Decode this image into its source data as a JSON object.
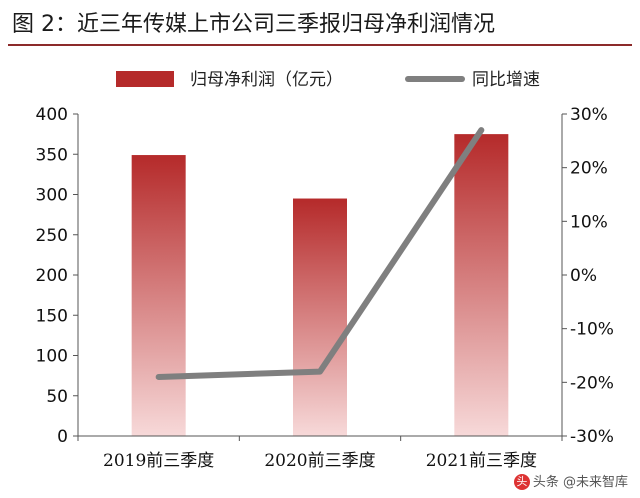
{
  "figure_title": "图 2：近三年传媒上市公司三季报归母净利润情况",
  "watermark": "头条 @未来智库",
  "chart_data": {
    "type": "bar+line",
    "title": "近三年传媒上市公司三季报归母净利润情况",
    "categories": [
      "2019前三季度",
      "2020前三季度",
      "2021前三季度"
    ],
    "series": [
      {
        "name": "归母净利润（亿元）",
        "type": "bar",
        "axis": "left",
        "values": [
          349,
          295,
          375
        ],
        "color": "#b52a2a"
      },
      {
        "name": "同比增速",
        "type": "line",
        "axis": "right",
        "values": [
          -19,
          -18,
          27
        ],
        "unit": "%",
        "color": "#7f7f7f"
      }
    ],
    "y_left": {
      "min": 0,
      "max": 400,
      "ticks": [
        0,
        50,
        100,
        150,
        200,
        250,
        300,
        350,
        400
      ]
    },
    "y_right": {
      "min": -30,
      "max": 30,
      "ticks": [
        "-30%",
        "-20%",
        "-10%",
        "0%",
        "10%",
        "20%",
        "30%"
      ]
    },
    "legend_position": "top-center",
    "grid": false
  }
}
